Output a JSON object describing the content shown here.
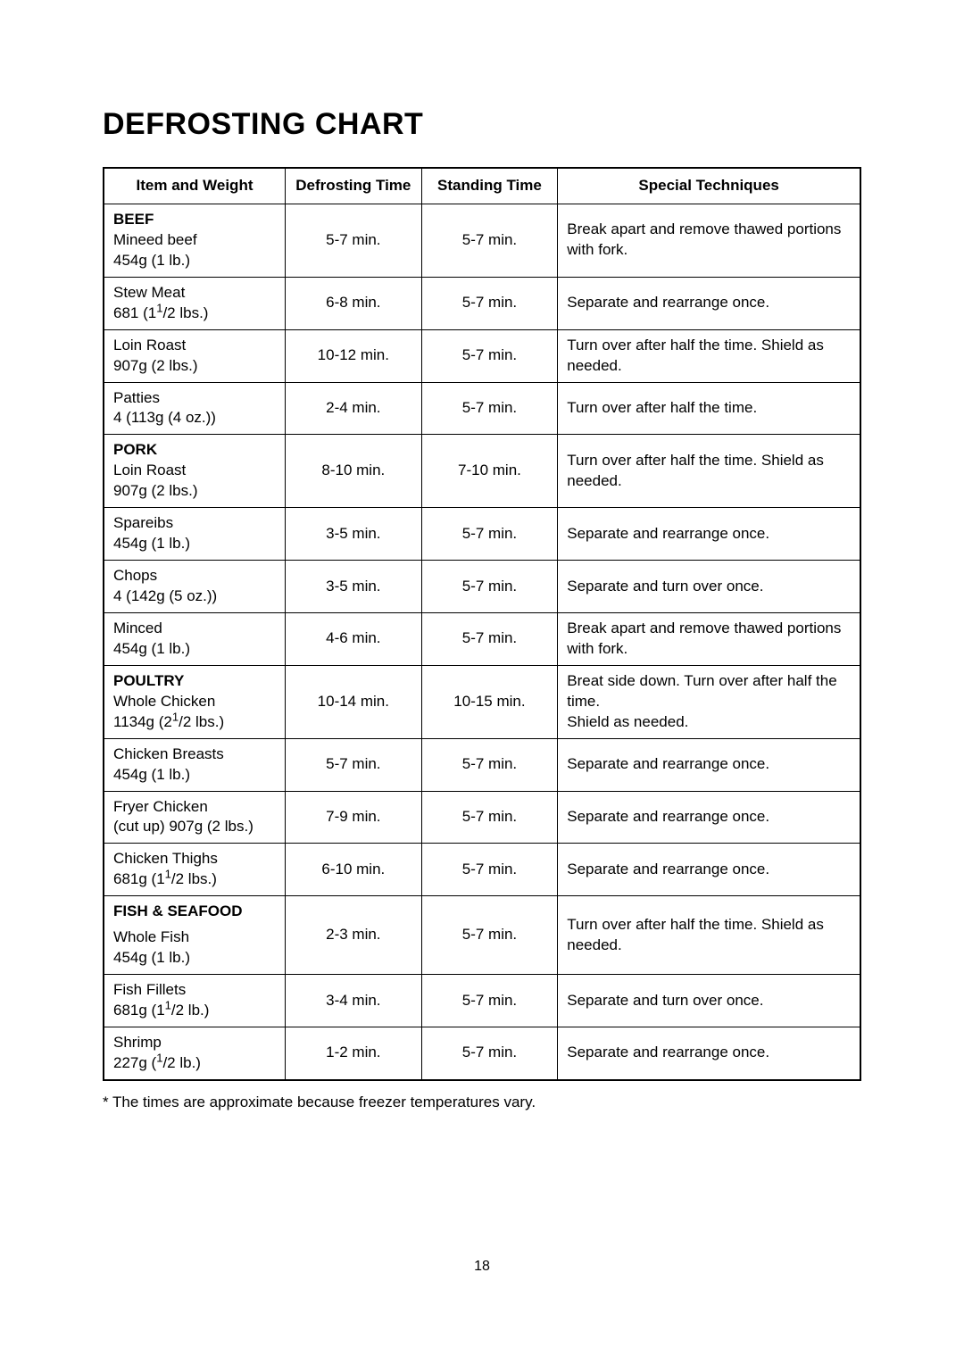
{
  "title": "DEFROSTING CHART",
  "columns": {
    "c1": "Item and Weight",
    "c2": "Defrosting Time",
    "c3": "Standing Time",
    "c4": "Special Techniques"
  },
  "rows": [
    {
      "cat": "BEEF",
      "line1": "Mineed beef",
      "line2": "454g (1 lb.)",
      "defrost": "5-7 min.",
      "stand": "5-7 min.",
      "tech": "Break apart and remove thawed portions with fork."
    },
    {
      "line1": "Stew Meat",
      "line2_pre": "681 (1",
      "line2_frac": "1",
      "line2_post": "/2 lbs.)",
      "defrost": "6-8 min.",
      "stand": "5-7 min.",
      "tech": "Separate and rearrange once."
    },
    {
      "line1": "Loin Roast",
      "line2": "907g (2 lbs.)",
      "defrost": "10-12 min.",
      "stand": "5-7 min.",
      "tech": "Turn over after half the time. Shield as needed."
    },
    {
      "line1": "Patties",
      "line2": "4 (113g (4 oz.))",
      "defrost": "2-4 min.",
      "stand": "5-7 min.",
      "tech": "Turn over after half the time."
    },
    {
      "cat": "PORK",
      "line1": "Loin Roast",
      "line2": "907g (2 lbs.)",
      "defrost": "8-10 min.",
      "stand": "7-10 min.",
      "tech": "Turn over after half the time. Shield as needed."
    },
    {
      "line1": "Spareibs",
      "line2": "454g (1 lb.)",
      "defrost": "3-5 min.",
      "stand": "5-7 min.",
      "tech": "Separate and rearrange once."
    },
    {
      "line1": "Chops",
      "line2": "4 (142g (5 oz.))",
      "defrost": "3-5 min.",
      "stand": "5-7 min.",
      "tech": "Separate and turn over once."
    },
    {
      "line1": "Minced",
      "line2": "454g (1 lb.)",
      "defrost": "4-6 min.",
      "stand": "5-7 min.",
      "tech": "Break apart and remove thawed portions with fork."
    },
    {
      "cat": "POULTRY",
      "line1": "Whole Chicken",
      "line2_pre": "1134g (2",
      "line2_frac": "1",
      "line2_post": "/2 lbs.)",
      "defrost": "10-14 min.",
      "stand": "10-15 min.",
      "tech": "Breat side down. Turn over after half the time.\nShield as needed."
    },
    {
      "line1": "Chicken Breasts",
      "line2": "454g (1 lb.)",
      "defrost": "5-7 min.",
      "stand": "5-7 min.",
      "tech": "Separate and rearrange once."
    },
    {
      "line1": "Fryer Chicken",
      "line2": "(cut up) 907g (2 lbs.)",
      "defrost": "7-9 min.",
      "stand": "5-7 min.",
      "tech": "Separate and rearrange once."
    },
    {
      "line1": "Chicken Thighs",
      "line2_pre": "681g (1",
      "line2_frac": "1",
      "line2_post": "/2 lbs.)",
      "defrost": "6-10 min.",
      "stand": "5-7 min.",
      "tech": "Separate and rearrange once."
    },
    {
      "cat": "FISH & SEAFOOD",
      "line1": "Whole Fish",
      "line2": "454g (1 lb.)",
      "defrost": "2-3 min.",
      "stand": "5-7 min.",
      "tech": "Turn over after half the time. Shield as needed.",
      "spacer": true
    },
    {
      "line1": "Fish Fillets",
      "line2_pre": "681g (1",
      "line2_frac": "1",
      "line2_post": "/2 lb.)",
      "defrost": "3-4 min.",
      "stand": "5-7 min.",
      "tech": "Separate and turn over once."
    },
    {
      "line1": "Shrimp",
      "line2_pre": "227g (",
      "line2_frac": "1",
      "line2_post": "/2 lb.)",
      "defrost": "1-2 min.",
      "stand": "5-7 min.",
      "tech": "Separate and rearrange once."
    }
  ],
  "footnote": "* The times are approximate because freezer temperatures vary.",
  "page": "18"
}
